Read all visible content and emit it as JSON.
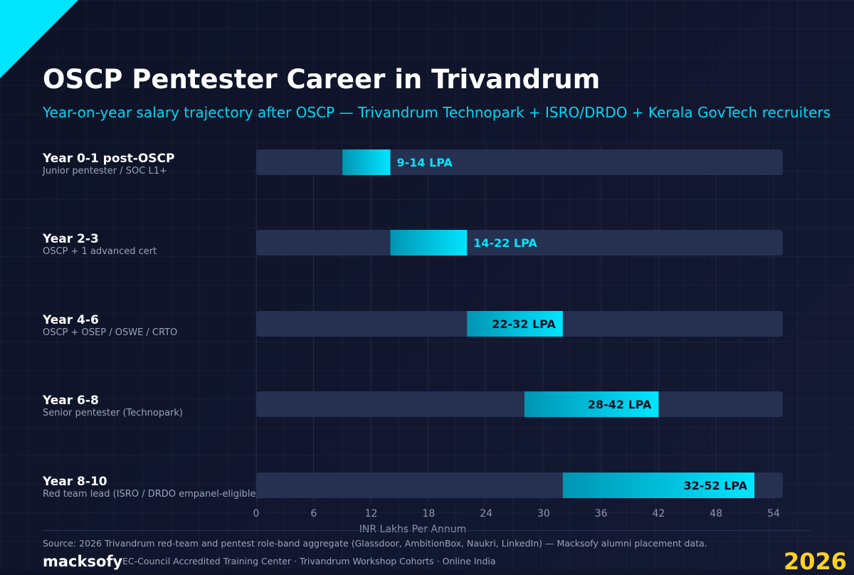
{
  "title": "OSCP Pentester Career in Trivandrum",
  "subtitle": "Year-on-year salary trajectory after OSCP — Trivandrum Technopark + ISRO/DRDO + Kerala GovTech recruiters",
  "rows": [
    {
      "label": "Year 0-1 post-OSCP",
      "sublabel": "Junior pentester / SOC L1+"
    },
    {
      "label": "Year 2-3",
      "sublabel": "OSCP + 1 advanced cert"
    },
    {
      "label": "Year 4-6",
      "sublabel": "OSCP + OSEP / OSWE / CRTO"
    },
    {
      "label": "Year 6-8",
      "sublabel": "Senior pentester (Technopark)"
    },
    {
      "label": "Year 8-10",
      "sublabel": "Red team lead (ISRO / DRDO empanel-eligible)"
    }
  ],
  "chart_data": {
    "type": "bar",
    "orientation": "horizontal floating range",
    "categories": [
      "Year 0-1 post-OSCP",
      "Year 2-3",
      "Year 4-6",
      "Year 6-8",
      "Year 8-10"
    ],
    "ranges": [
      [
        9,
        14
      ],
      [
        14,
        22
      ],
      [
        22,
        32
      ],
      [
        28,
        42
      ],
      [
        32,
        52
      ]
    ],
    "data_labels": [
      "9-14 LPA",
      "14-22 LPA",
      "22-32 LPA",
      "28-42 LPA",
      "32-52 LPA"
    ],
    "xlabel": "INR Lakhs Per Annum",
    "xticks": [
      0,
      6,
      12,
      18,
      24,
      30,
      36,
      42,
      48,
      54
    ],
    "xlim": [
      0,
      55
    ],
    "grid": "vertical",
    "colors": {
      "track": "#263050",
      "bar_start": "#0095b3",
      "bar_end": "#00e5ff",
      "label_outside": "#00e5ff",
      "label_inside": "#0b1124"
    }
  },
  "footer": {
    "source": "Source: 2026 Trivandrum red-team and pentest role-band aggregate (Glassdoor, AmbitionBox, Naukri, LinkedIn) — Macksofy alumni placement data.",
    "brand": "macksofy",
    "tagline": "EC-Council Accredited Training Center · Trivandrum Workshop Cohorts · Online India",
    "year": "2026"
  }
}
